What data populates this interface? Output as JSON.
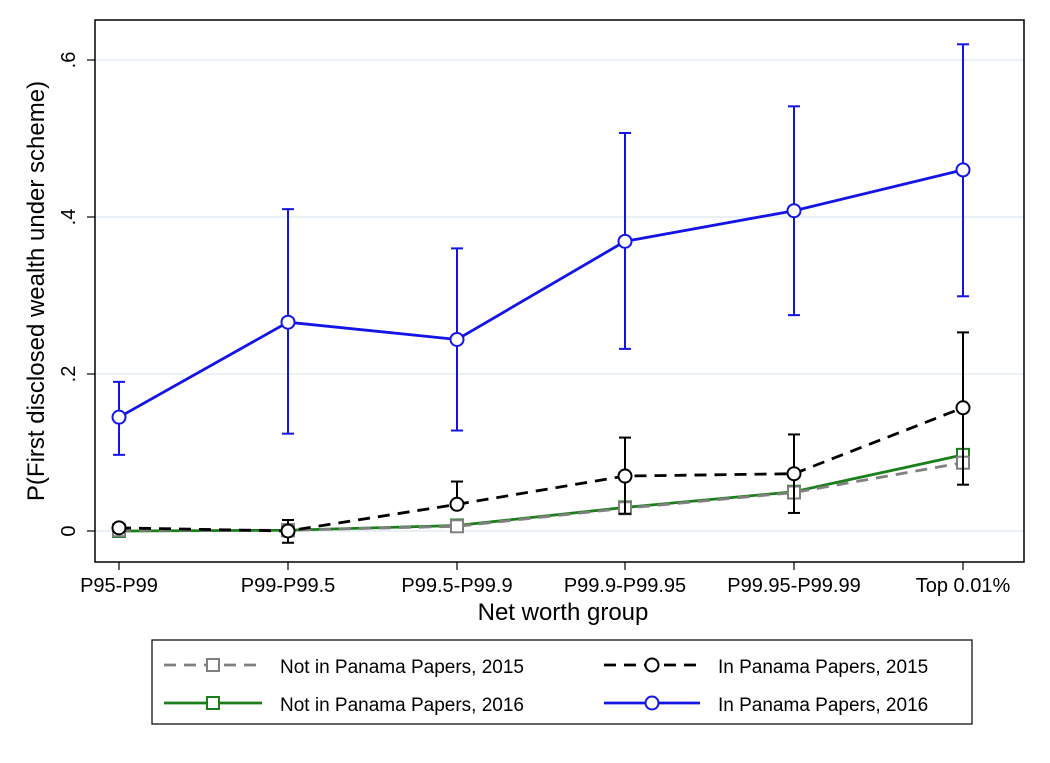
{
  "chart_data": {
    "type": "line",
    "title": "",
    "xlabel": "Net worth group",
    "ylabel": "P(First disclosed wealth under scheme)",
    "categories": [
      "P95-P99",
      "P99-P99.5",
      "P99.5-P99.9",
      "P99.9-P99.95",
      "P99.95-P99.99",
      "Top 0.01%"
    ],
    "ylim": [
      -0.05,
      0.65
    ],
    "yticks": [
      0,
      0.2,
      0.4,
      0.6
    ],
    "ytick_labels": [
      "0",
      ".2",
      ".4",
      ".6"
    ],
    "grid": true,
    "legend_position": "bottom",
    "series": [
      {
        "name": "Not in Panama Papers, 2015",
        "color": "#808080",
        "line_style": "dashed",
        "marker": "square",
        "values": [
          0.001,
          0.001,
          0.006,
          0.029,
          0.049,
          0.087
        ],
        "error_low": null,
        "error_high": null
      },
      {
        "name": "In Panama Papers, 2015",
        "color": "#000000",
        "line_style": "dashed",
        "marker": "circle",
        "values": [
          0.004,
          0.0,
          0.034,
          0.07,
          0.073,
          0.157
        ],
        "error_low": [
          0.004,
          -0.015,
          0.034,
          0.022,
          0.023,
          0.059
        ],
        "error_high": [
          0.004,
          0.014,
          0.063,
          0.119,
          0.123,
          0.253
        ]
      },
      {
        "name": "Not in Panama Papers, 2016",
        "color": "#1a7f1a",
        "line_style": "solid",
        "marker": "square",
        "values": [
          0.0,
          0.001,
          0.007,
          0.03,
          0.05,
          0.097
        ],
        "error_low": null,
        "error_high": null
      },
      {
        "name": "In Panama Papers, 2016",
        "color": "#1414e6",
        "line_style": "solid",
        "marker": "circle",
        "values": [
          0.145,
          0.266,
          0.244,
          0.369,
          0.408,
          0.46
        ],
        "error_low": [
          0.097,
          0.124,
          0.128,
          0.232,
          0.275,
          0.299
        ],
        "error_high": [
          0.19,
          0.41,
          0.36,
          0.507,
          0.541,
          0.62
        ]
      }
    ],
    "legend_rows": [
      [
        "Not in Panama Papers, 2015",
        "In Panama Papers, 2015"
      ],
      [
        "Not in Panama Papers, 2016",
        "In Panama Papers, 2016"
      ]
    ]
  }
}
